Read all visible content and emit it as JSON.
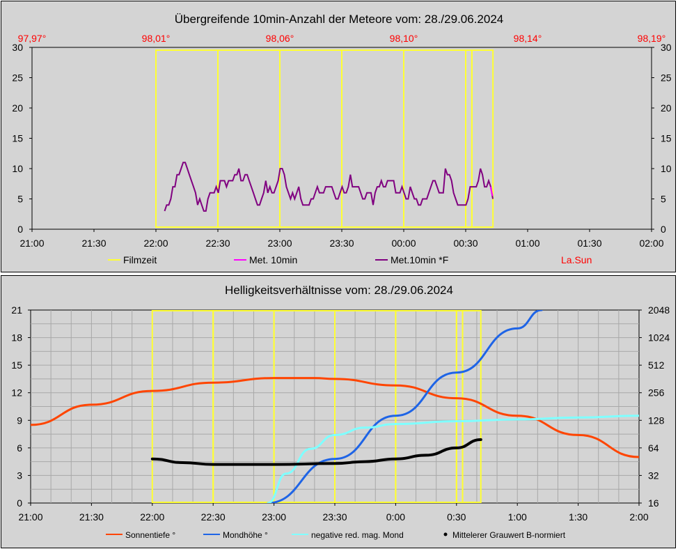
{
  "chart_data": [
    {
      "type": "line",
      "title": "Übergreifende 10min-Anzahl der Meteore vom: 28./29.06.2024",
      "x_ticks": [
        "21:00",
        "21:30",
        "22:00",
        "22:30",
        "23:00",
        "23:30",
        "00:00",
        "00:30",
        "01:00",
        "01:30",
        "02:00"
      ],
      "top_ticks": [
        "97,97°",
        "98,01°",
        "98,06°",
        "98,10°",
        "98,14°",
        "98,19°"
      ],
      "ylim": [
        0,
        30
      ],
      "y_ticks": [
        0,
        5,
        10,
        15,
        20,
        25,
        30
      ],
      "grid": false,
      "legend": [
        {
          "label": "Filmzeit",
          "color": "#ffff33"
        },
        {
          "label": "Met. 10min",
          "color": "#ff00ff"
        },
        {
          "label": "Met.10min *F",
          "color": "#800080"
        },
        {
          "label": "La.Sun",
          "color": "#ff0000",
          "text_only": true
        }
      ],
      "film_segments_hours": [
        [
          22.0,
          22.5
        ],
        [
          22.5,
          23.0
        ],
        [
          23.0,
          23.5
        ],
        [
          23.5,
          24.0
        ],
        [
          24.0,
          24.5
        ],
        [
          24.5,
          24.55
        ],
        [
          24.55,
          24.72
        ]
      ],
      "series": [
        {
          "name": "Met.10min *F",
          "color": "#800080",
          "x_start_hours": 22.07,
          "x_step_hours": 0.01666,
          "values": [
            3,
            4,
            4,
            5,
            7,
            7,
            9,
            9,
            10,
            11,
            11,
            10,
            9,
            8,
            7,
            6,
            4,
            5,
            4,
            3,
            3,
            5,
            6,
            6,
            6,
            7,
            6,
            8,
            8,
            8,
            7,
            8,
            8,
            8,
            9,
            9,
            10,
            8,
            8,
            9,
            9,
            8,
            7,
            6,
            5,
            4,
            4,
            5,
            6,
            8,
            6,
            7,
            6,
            6,
            7,
            8,
            10,
            10,
            9,
            7,
            6,
            5,
            6,
            5,
            6,
            7,
            5,
            4,
            4,
            4,
            4,
            5,
            5,
            6,
            7,
            6,
            6,
            6,
            7,
            7,
            7,
            7,
            6,
            5,
            5,
            6,
            7,
            6,
            6,
            7,
            9,
            7,
            7,
            7,
            7,
            6,
            5,
            5,
            6,
            6,
            6,
            4,
            6,
            7,
            7,
            8,
            7,
            7,
            8,
            8,
            8,
            8,
            6,
            6,
            6,
            7,
            6,
            5,
            5,
            7,
            6,
            5,
            5,
            4,
            4,
            5,
            5,
            5,
            6,
            7,
            8,
            8,
            7,
            6,
            6,
            6,
            10,
            9,
            9,
            8,
            6,
            5,
            4,
            4,
            4,
            4,
            4,
            5,
            7,
            7,
            7,
            7,
            8,
            10,
            9,
            7,
            7,
            8,
            7,
            5
          ]
        },
        {
          "name": "Met. 10min",
          "color": "#ff00ff",
          "x_start_hours": 24.7,
          "x_step_hours": 0.0167,
          "values": [
            7,
            5.5
          ]
        }
      ]
    },
    {
      "type": "line",
      "title": "Helligkeitsverhältnisse vom: 28./29.06.2024",
      "x_ticks": [
        "21:00",
        "21:30",
        "22:00",
        "22:30",
        "23:00",
        "23:30",
        "0:00",
        "0:30",
        "1:00",
        "1:30",
        "2:00"
      ],
      "ylim": [
        0,
        21
      ],
      "y_ticks": [
        0,
        3,
        6,
        9,
        12,
        15,
        18,
        21
      ],
      "y2_ticks": [
        "16",
        "32",
        "64",
        "128",
        "256",
        "512",
        "1024",
        "2048"
      ],
      "y2_scale": "log2",
      "grid": true,
      "legend": [
        {
          "label": "Sonnentiefe °",
          "color": "#ff4500"
        },
        {
          "label": "Mondhöhe °",
          "color": "#1e64e6"
        },
        {
          "label": "negative red. mag. Mond",
          "color": "#7fffff"
        },
        {
          "label": "Mittelerer Grauwert B-normiert",
          "color": "#000000"
        }
      ],
      "film_segments_hours": [
        [
          22.0,
          22.5
        ],
        [
          22.5,
          23.0
        ],
        [
          23.0,
          23.5
        ],
        [
          23.5,
          24.0
        ],
        [
          24.0,
          24.5
        ],
        [
          24.5,
          24.55
        ],
        [
          24.55,
          24.7
        ]
      ],
      "series": [
        {
          "name": "Sonnentiefe °",
          "x": [
            21.0,
            21.5,
            22.0,
            22.5,
            23.0,
            23.33,
            23.5,
            24.0,
            24.5,
            25.0,
            25.5,
            26.0
          ],
          "values": [
            8.5,
            10.7,
            12.2,
            13.1,
            13.6,
            13.6,
            13.5,
            12.8,
            11.4,
            9.5,
            7.4,
            5.0
          ]
        },
        {
          "name": "Mondhöhe °",
          "x": [
            22.95,
            23.5,
            24.0,
            24.5,
            25.0,
            25.2
          ],
          "values": [
            0,
            4.8,
            9.5,
            14.2,
            19.0,
            21.0
          ]
        },
        {
          "name": "negative red. mag. Mond",
          "x": [
            22.95,
            23.1,
            23.3,
            23.5,
            23.75,
            24.0,
            24.5,
            25.0,
            25.5,
            26.0
          ],
          "values": [
            0,
            3.2,
            5.9,
            7.4,
            8.2,
            8.6,
            8.9,
            9.1,
            9.3,
            9.5
          ]
        },
        {
          "name": "Mittelerer Grauwert B-normiert",
          "x": [
            22.0,
            22.25,
            22.5,
            23.0,
            23.5,
            23.75,
            24.0,
            24.25,
            24.5,
            24.7
          ],
          "values": [
            4.8,
            4.4,
            4.2,
            4.2,
            4.3,
            4.5,
            4.8,
            5.2,
            6.0,
            6.9
          ]
        }
      ]
    }
  ]
}
